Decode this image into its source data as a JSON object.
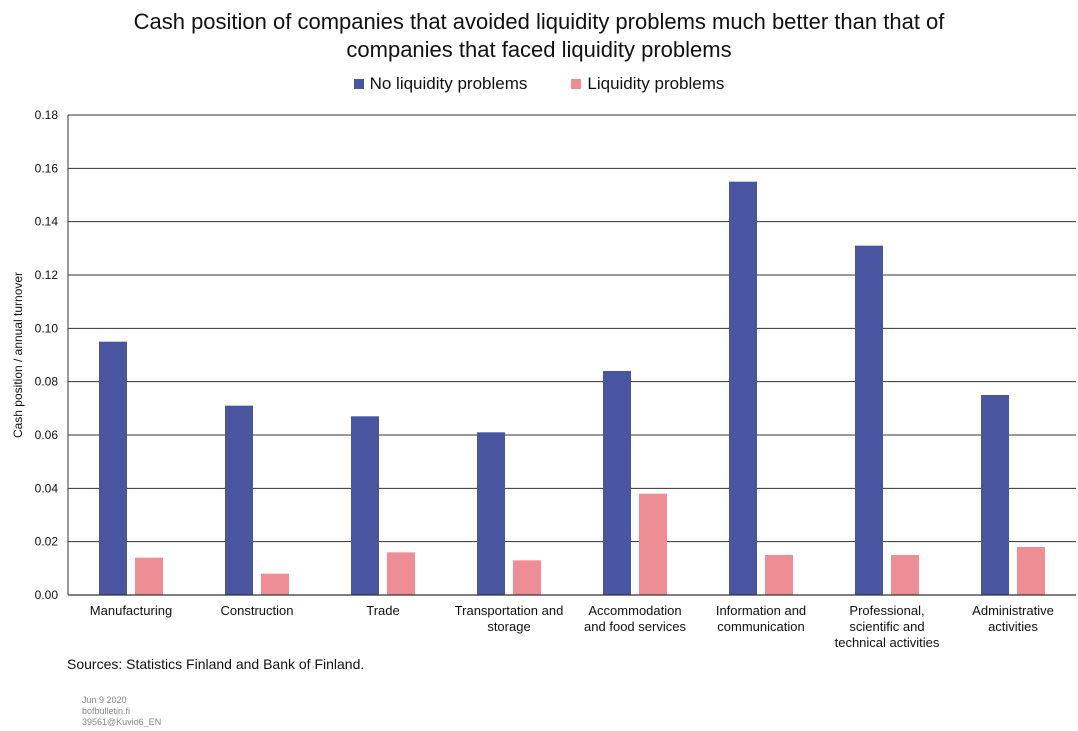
{
  "chart_data": {
    "type": "bar",
    "title_lines": [
      "Cash position of companies that avoided liquidity problems much better than that of",
      "companies that faced liquidity problems"
    ],
    "ylabel": "Cash position / annual turnover",
    "xlabel": "",
    "ylim": [
      0,
      0.18
    ],
    "yticks": [
      "0.00",
      "0.02",
      "0.04",
      "0.06",
      "0.08",
      "0.10",
      "0.12",
      "0.14",
      "0.16",
      "0.18"
    ],
    "grid": true,
    "legend_position": "top-center",
    "categories": [
      [
        "Manufacturing"
      ],
      [
        "Construction"
      ],
      [
        "Trade"
      ],
      [
        "Transportation and",
        "storage"
      ],
      [
        "Accommodation",
        "and food services"
      ],
      [
        "Information and",
        "communication"
      ],
      [
        "Professional,",
        "scientific and",
        "technical activities"
      ],
      [
        "Administrative",
        "activities"
      ]
    ],
    "series": [
      {
        "name": "No liquidity problems",
        "color": "#4a55a2",
        "values": [
          0.095,
          0.071,
          0.067,
          0.061,
          0.084,
          0.155,
          0.131,
          0.075
        ]
      },
      {
        "name": "Liquidity problems",
        "color": "#ee8e94",
        "values": [
          0.014,
          0.008,
          0.016,
          0.013,
          0.038,
          0.015,
          0.015,
          0.018
        ]
      }
    ]
  },
  "source": "Sources: Statistics Finland and Bank of Finland.",
  "footer": [
    "Jun 9 2020",
    "bofbulletin.fi",
    "39561@Kuvio6_EN"
  ]
}
